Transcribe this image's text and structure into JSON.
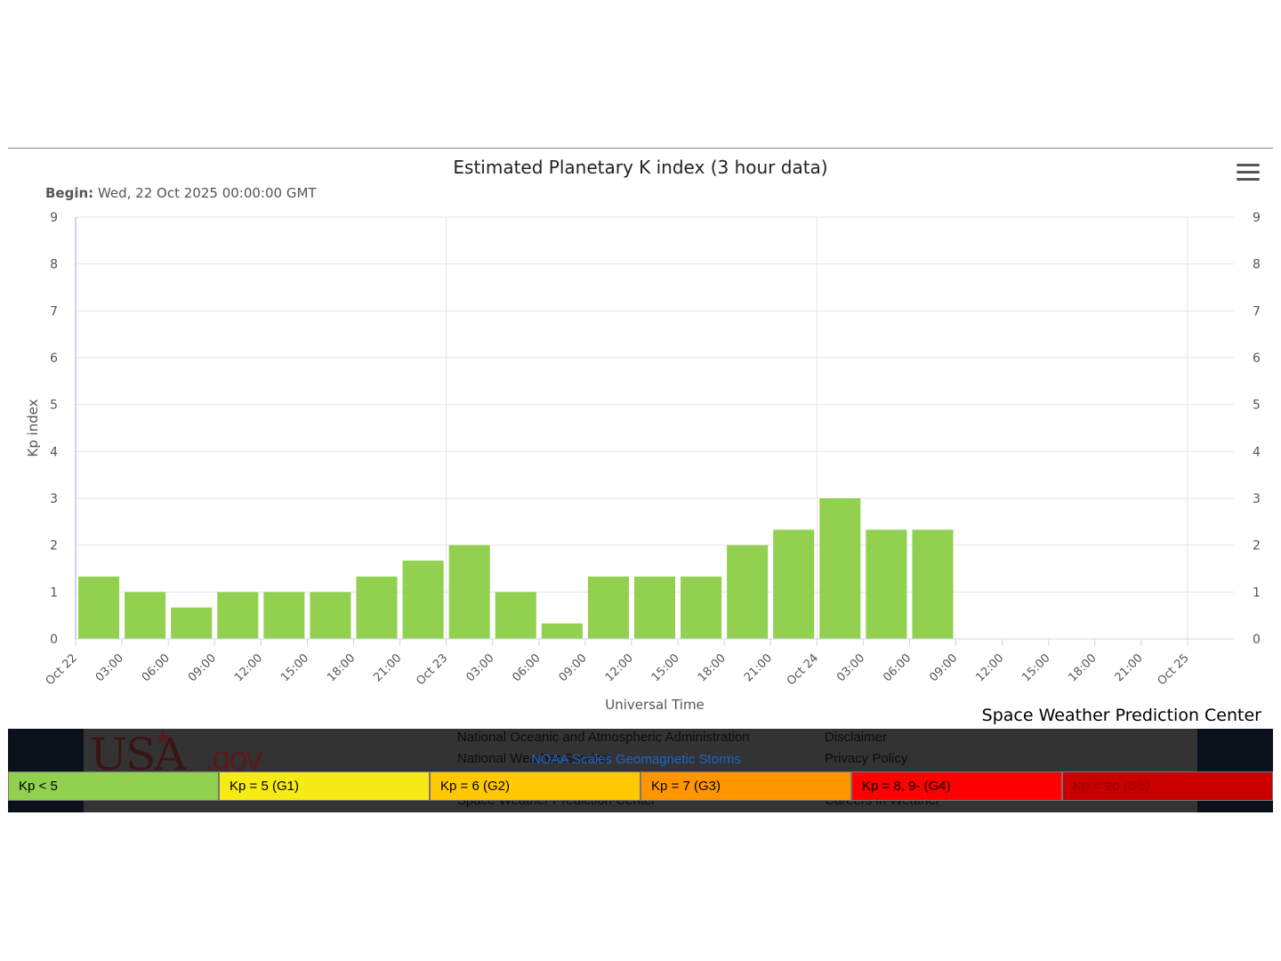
{
  "chart": {
    "title": "Estimated Planetary K index (3 hour data)",
    "subtitle_label": "Begin:",
    "subtitle_value": "Wed, 22 Oct 2025 00:00:00 GMT",
    "credit": "Space Weather Prediction Center",
    "menu_icon": "hamburger-menu-icon"
  },
  "chart_data": {
    "type": "bar",
    "ylabel": "Kp index",
    "xlabel": "Universal Time",
    "ylim": [
      0,
      9
    ],
    "y_ticks": [
      "0",
      "1",
      "2",
      "3",
      "4",
      "5",
      "6",
      "7",
      "8",
      "9"
    ],
    "y_ticks_right": [
      "0",
      "1",
      "2",
      "3",
      "4",
      "5",
      "6",
      "7",
      "8",
      "9"
    ],
    "x_tick_labels": [
      "Oct 22",
      "03:00",
      "06:00",
      "09:00",
      "12:00",
      "15:00",
      "18:00",
      "21:00",
      "Oct 23",
      "03:00",
      "06:00",
      "09:00",
      "12:00",
      "15:00",
      "18:00",
      "21:00",
      "Oct 24",
      "03:00",
      "06:00",
      "09:00",
      "12:00",
      "15:00",
      "18:00",
      "21:00",
      "Oct 25"
    ],
    "x_start": "2025-10-22T00:00Z",
    "x_interval_hours": 3,
    "x_domain_hours": [
      0,
      75
    ],
    "grid": true,
    "bar_color": "#92d050",
    "values": [
      1.33,
      1.0,
      0.67,
      1.0,
      1.0,
      1.0,
      1.33,
      1.67,
      2.0,
      1.0,
      0.33,
      1.33,
      1.33,
      1.33,
      2.0,
      2.33,
      3.0,
      2.33,
      2.33
    ]
  },
  "footer": {
    "logo_text": "USA",
    "logo_suffix": ".gov",
    "links_col1": [
      "National Oceanic and Atmospheric Administration",
      "National Weather Service",
      "Space Weather Prediction Center"
    ],
    "links_col2": [
      "Disclaimer",
      "Privacy Policy",
      "Careers in Weather"
    ],
    "overlay_link": "NOAA Scales Geomagnetic Storms"
  },
  "legend": [
    {
      "label": "Kp < 5",
      "color": "#92d050",
      "text_color": "#000000"
    },
    {
      "label": "Kp = 5 (G1)",
      "color": "#f6eb14",
      "text_color": "#000000"
    },
    {
      "label": "Kp = 6 (G2)",
      "color": "#ffc800",
      "text_color": "#000000"
    },
    {
      "label": "Kp = 7 (G3)",
      "color": "#ff9600",
      "text_color": "#000000"
    },
    {
      "label": "Kp = 8, 9- (G4)",
      "color": "#ff0000",
      "text_color": "#000000"
    },
    {
      "label": "Kp = 9o (G5)",
      "color": "#c80000",
      "text_color": "#9a0000"
    }
  ]
}
